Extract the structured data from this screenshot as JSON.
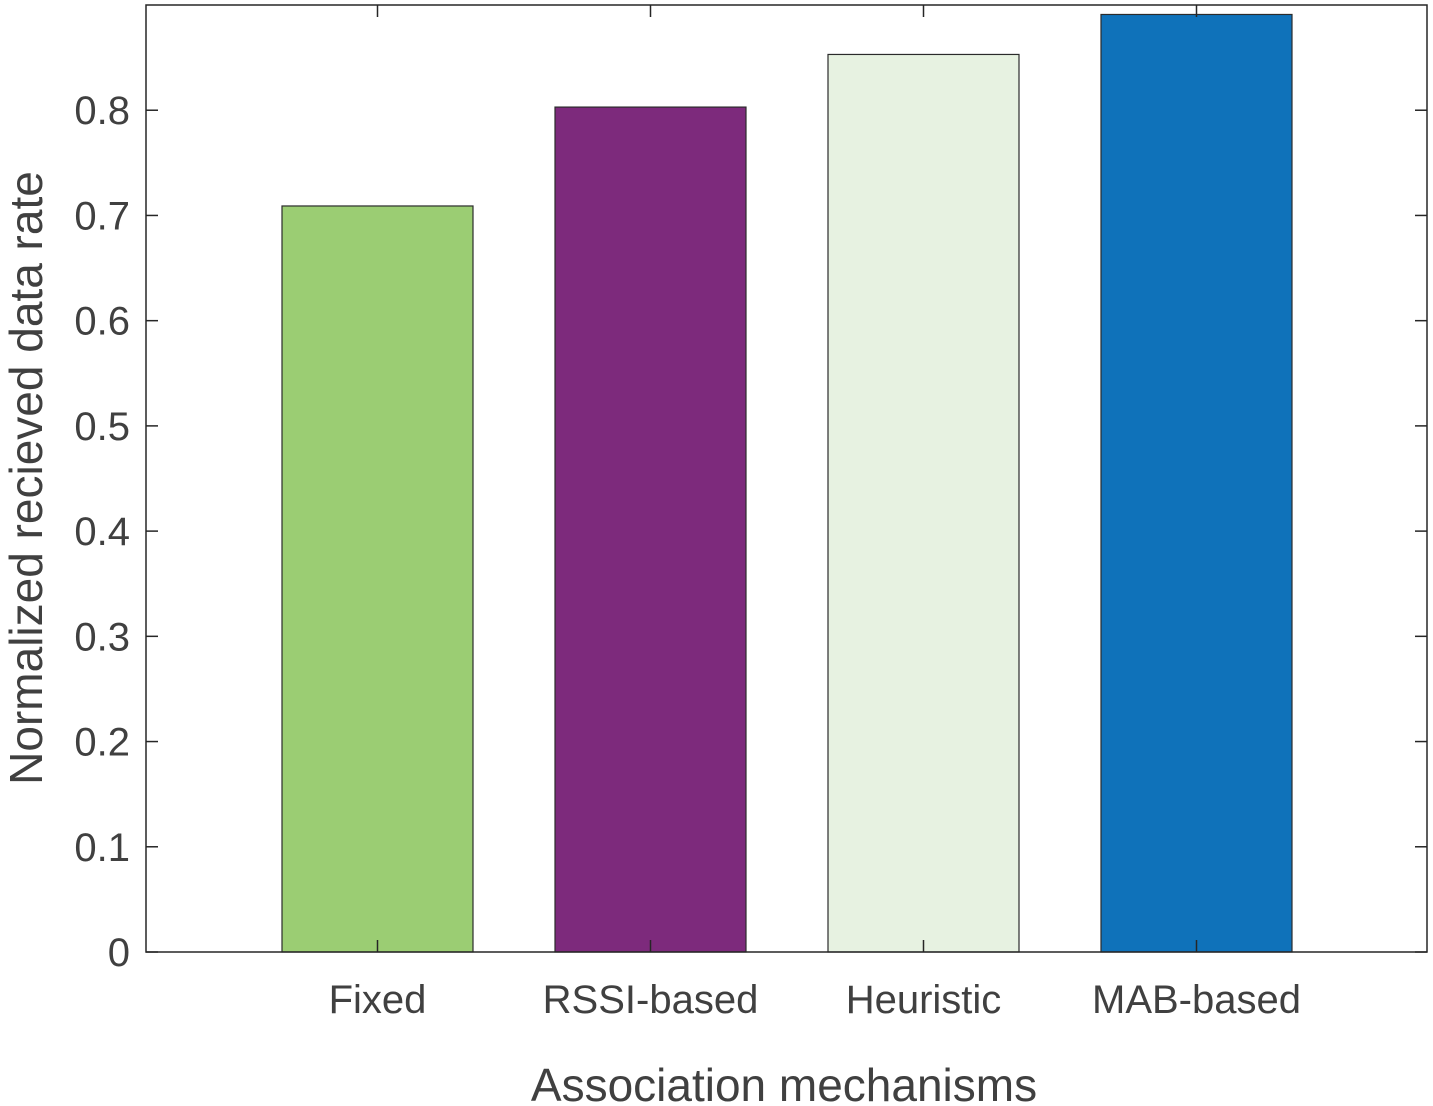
{
  "chart_data": {
    "type": "bar",
    "title": "",
    "xlabel": "Association mechanisms",
    "ylabel": "Normalized recieved data rate",
    "categories": [
      "Fixed",
      "RSSI-based",
      "Heuristic",
      "MAB-based"
    ],
    "values": [
      0.709,
      0.803,
      0.853,
      0.891
    ],
    "bar_colors": [
      "#9BCD73",
      "#7D2A7C",
      "#E7F2E1",
      "#0F72BA"
    ],
    "ylim": [
      0,
      0.9
    ],
    "yticks": [
      0,
      0.1,
      0.2,
      0.3,
      0.4,
      0.5,
      0.6,
      0.7,
      0.8
    ],
    "ytick_labels": [
      "0",
      "0.1",
      "0.2",
      "0.3",
      "0.4",
      "0.5",
      "0.6",
      "0.7",
      "0.8"
    ],
    "grid": false,
    "legend": "none",
    "axis_color": "#262626",
    "text_color": "#404040"
  }
}
